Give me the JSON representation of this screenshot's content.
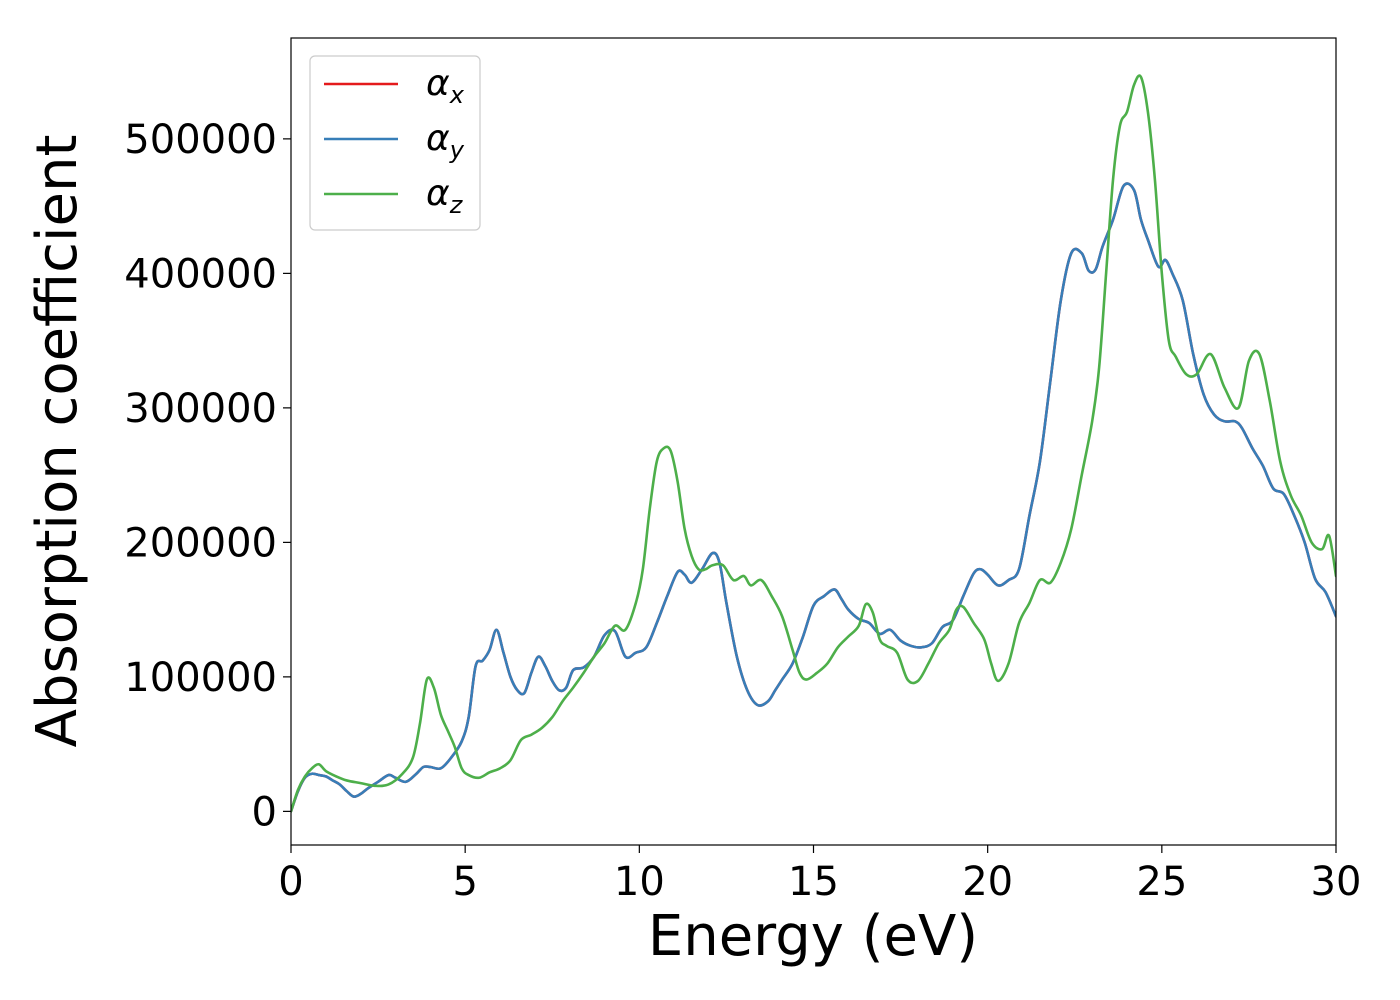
{
  "chart_data": {
    "type": "line",
    "title": "",
    "xlabel": "Energy (eV)",
    "ylabel": "Absorption coefficient",
    "xlim": [
      0,
      30
    ],
    "ylim": [
      -25000,
      575000
    ],
    "xticks": [
      0,
      5,
      10,
      15,
      20,
      25,
      30
    ],
    "yticks": [
      0,
      100000,
      200000,
      300000,
      400000,
      500000
    ],
    "grid": false,
    "legend_position": "top-left",
    "series": [
      {
        "name": "αx",
        "legend_base": "α",
        "legend_sub": "x",
        "color": "#e41a1c",
        "x": [
          0,
          0.2,
          0.4,
          0.6,
          0.8,
          1,
          1.2,
          1.4,
          1.6,
          1.8,
          2,
          2.2,
          2.5,
          2.8,
          3,
          3.3,
          3.6,
          3.8,
          4,
          4.3,
          4.6,
          4.9,
          5.1,
          5.3,
          5.5,
          5.7,
          5.9,
          6.1,
          6.3,
          6.5,
          6.7,
          6.9,
          7.1,
          7.3,
          7.5,
          7.7,
          7.9,
          8.1,
          8.4,
          8.7,
          9,
          9.3,
          9.6,
          9.9,
          10.2,
          10.5,
          10.8,
          11.1,
          11.3,
          11.5,
          11.8,
          12.1,
          12.3,
          12.5,
          12.8,
          13.1,
          13.4,
          13.7,
          13.9,
          14.1,
          14.4,
          14.7,
          15,
          15.3,
          15.6,
          15.8,
          16,
          16.3,
          16.6,
          16.9,
          17.2,
          17.5,
          17.8,
          18.1,
          18.4,
          18.7,
          19,
          19.3,
          19.6,
          19.8,
          20,
          20.3,
          20.6,
          20.9,
          21.2,
          21.5,
          21.8,
          22.1,
          22.4,
          22.7,
          22.9,
          23.1,
          23.3,
          23.6,
          23.9,
          24.2,
          24.4,
          24.6,
          24.9,
          25.1,
          25.3,
          25.6,
          25.9,
          26.2,
          26.5,
          26.8,
          27.1,
          27.3,
          27.6,
          27.9,
          28.2,
          28.5,
          28.8,
          29.1,
          29.4,
          29.7,
          30
        ],
        "values": [
          0,
          15000,
          25000,
          28000,
          27000,
          26000,
          23000,
          20000,
          15000,
          11000,
          13000,
          17000,
          22000,
          27000,
          25000,
          22000,
          28000,
          33000,
          33000,
          32000,
          40000,
          52000,
          70000,
          108000,
          112000,
          120000,
          135000,
          118000,
          100000,
          90000,
          88000,
          103000,
          115000,
          108000,
          97000,
          90000,
          92000,
          105000,
          107000,
          115000,
          131000,
          134000,
          115000,
          118000,
          122000,
          140000,
          160000,
          178000,
          176000,
          170000,
          180000,
          192000,
          185000,
          155000,
          115000,
          90000,
          79000,
          82000,
          90000,
          98000,
          110000,
          130000,
          153000,
          160000,
          165000,
          158000,
          150000,
          143000,
          140000,
          132000,
          135000,
          127000,
          123000,
          122000,
          125000,
          137000,
          142000,
          160000,
          177000,
          180000,
          176000,
          168000,
          172000,
          180000,
          220000,
          260000,
          320000,
          380000,
          415000,
          415000,
          402000,
          403000,
          420000,
          440000,
          465000,
          462000,
          440000,
          425000,
          405000,
          410000,
          400000,
          380000,
          340000,
          310000,
          295000,
          290000,
          290000,
          285000,
          270000,
          257000,
          240000,
          236000,
          220000,
          200000,
          173000,
          163000,
          145000
        ]
      },
      {
        "name": "αy",
        "legend_base": "α",
        "legend_sub": "y",
        "color": "#377eb8",
        "x": [
          0,
          0.2,
          0.4,
          0.6,
          0.8,
          1,
          1.2,
          1.4,
          1.6,
          1.8,
          2,
          2.2,
          2.5,
          2.8,
          3,
          3.3,
          3.6,
          3.8,
          4,
          4.3,
          4.6,
          4.9,
          5.1,
          5.3,
          5.5,
          5.7,
          5.9,
          6.1,
          6.3,
          6.5,
          6.7,
          6.9,
          7.1,
          7.3,
          7.5,
          7.7,
          7.9,
          8.1,
          8.4,
          8.7,
          9,
          9.3,
          9.6,
          9.9,
          10.2,
          10.5,
          10.8,
          11.1,
          11.3,
          11.5,
          11.8,
          12.1,
          12.3,
          12.5,
          12.8,
          13.1,
          13.4,
          13.7,
          13.9,
          14.1,
          14.4,
          14.7,
          15,
          15.3,
          15.6,
          15.8,
          16,
          16.3,
          16.6,
          16.9,
          17.2,
          17.5,
          17.8,
          18.1,
          18.4,
          18.7,
          19,
          19.3,
          19.6,
          19.8,
          20,
          20.3,
          20.6,
          20.9,
          21.2,
          21.5,
          21.8,
          22.1,
          22.4,
          22.7,
          22.9,
          23.1,
          23.3,
          23.6,
          23.9,
          24.2,
          24.4,
          24.6,
          24.9,
          25.1,
          25.3,
          25.6,
          25.9,
          26.2,
          26.5,
          26.8,
          27.1,
          27.3,
          27.6,
          27.9,
          28.2,
          28.5,
          28.8,
          29.1,
          29.4,
          29.7,
          30
        ],
        "values": [
          0,
          15000,
          25000,
          28000,
          27000,
          26000,
          23000,
          20000,
          15000,
          11000,
          13000,
          17000,
          22000,
          27000,
          25000,
          22000,
          28000,
          33000,
          33000,
          32000,
          40000,
          52000,
          70000,
          108000,
          112000,
          120000,
          135000,
          118000,
          100000,
          90000,
          88000,
          103000,
          115000,
          108000,
          97000,
          90000,
          92000,
          105000,
          107000,
          115000,
          131000,
          134000,
          115000,
          118000,
          122000,
          140000,
          160000,
          178000,
          176000,
          170000,
          180000,
          192000,
          185000,
          155000,
          115000,
          90000,
          79000,
          82000,
          90000,
          98000,
          110000,
          130000,
          153000,
          160000,
          165000,
          158000,
          150000,
          143000,
          140000,
          132000,
          135000,
          127000,
          123000,
          122000,
          125000,
          137000,
          142000,
          160000,
          177000,
          180000,
          176000,
          168000,
          172000,
          180000,
          220000,
          260000,
          320000,
          380000,
          415000,
          415000,
          402000,
          403000,
          420000,
          440000,
          465000,
          462000,
          440000,
          425000,
          405000,
          410000,
          400000,
          380000,
          340000,
          310000,
          295000,
          290000,
          290000,
          285000,
          270000,
          257000,
          240000,
          236000,
          220000,
          200000,
          173000,
          163000,
          145000
        ]
      },
      {
        "name": "αz",
        "legend_base": "α",
        "legend_sub": "z",
        "color": "#4daf4a",
        "x": [
          0,
          0.2,
          0.4,
          0.6,
          0.8,
          1,
          1.3,
          1.6,
          2,
          2.4,
          2.8,
          3.2,
          3.5,
          3.7,
          3.9,
          4.1,
          4.3,
          4.5,
          4.7,
          4.9,
          5.1,
          5.4,
          5.7,
          6,
          6.3,
          6.6,
          6.9,
          7.2,
          7.5,
          7.8,
          8.1,
          8.4,
          8.7,
          9,
          9.3,
          9.6,
          9.9,
          10.1,
          10.3,
          10.5,
          10.7,
          10.9,
          11.1,
          11.3,
          11.5,
          11.7,
          11.9,
          12.1,
          12.4,
          12.7,
          13,
          13.2,
          13.5,
          13.8,
          14.1,
          14.4,
          14.6,
          14.8,
          15.1,
          15.4,
          15.7,
          16,
          16.3,
          16.5,
          16.7,
          16.9,
          17.1,
          17.4,
          17.7,
          18,
          18.3,
          18.6,
          18.9,
          19.1,
          19.3,
          19.6,
          19.9,
          20.1,
          20.3,
          20.6,
          20.9,
          21.2,
          21.5,
          21.8,
          22.1,
          22.4,
          22.7,
          23,
          23.2,
          23.4,
          23.6,
          23.8,
          24,
          24.2,
          24.4,
          24.6,
          24.8,
          25,
          25.2,
          25.4,
          25.7,
          26,
          26.4,
          26.8,
          27.2,
          27.5,
          27.8,
          28.1,
          28.4,
          28.7,
          29,
          29.3,
          29.6,
          29.8,
          30
        ],
        "values": [
          0,
          16000,
          26000,
          32000,
          35000,
          30000,
          26000,
          23000,
          21000,
          19000,
          20000,
          28000,
          40000,
          65000,
          98000,
          92000,
          72000,
          60000,
          48000,
          32000,
          27000,
          25000,
          29000,
          32000,
          38000,
          53000,
          57000,
          62000,
          70000,
          82000,
          92000,
          103000,
          115000,
          125000,
          138000,
          135000,
          155000,
          180000,
          225000,
          260000,
          270000,
          268000,
          245000,
          210000,
          190000,
          180000,
          180000,
          183000,
          183000,
          172000,
          175000,
          168000,
          172000,
          160000,
          145000,
          120000,
          103000,
          98000,
          103000,
          110000,
          122000,
          130000,
          138000,
          154000,
          148000,
          128000,
          123000,
          118000,
          98000,
          97000,
          110000,
          125000,
          135000,
          150000,
          152000,
          140000,
          128000,
          110000,
          97000,
          110000,
          140000,
          155000,
          172000,
          170000,
          185000,
          210000,
          250000,
          290000,
          330000,
          400000,
          470000,
          510000,
          520000,
          540000,
          546000,
          520000,
          470000,
          400000,
          350000,
          338000,
          325000,
          325000,
          340000,
          315000,
          300000,
          335000,
          340000,
          305000,
          260000,
          235000,
          220000,
          200000,
          195000,
          205000,
          175000
        ]
      }
    ]
  }
}
